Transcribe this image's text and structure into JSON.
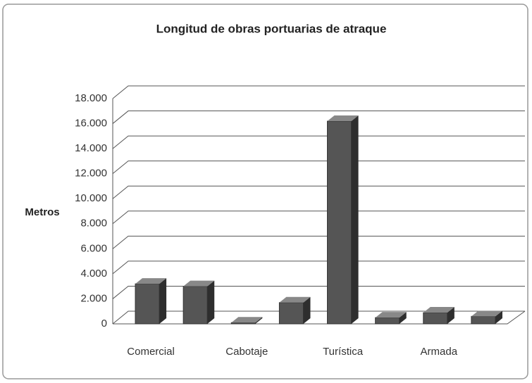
{
  "chart_data": {
    "type": "bar3d",
    "title": "Longitud de obras portuarias de atraque",
    "y_label": "Metros",
    "categories": [
      "Comercial",
      null,
      "Cabotaje",
      null,
      "Turística",
      null,
      "Armada",
      null
    ],
    "values": [
      3200,
      3000,
      100,
      1700,
      16200,
      500,
      900,
      600
    ],
    "color": "#555555",
    "ylim": [
      0,
      18000
    ],
    "yticks": [
      0,
      {
        "value": 2000,
        "label": "2.000"
      },
      {
        "value": 4000,
        "label": "4.000"
      },
      {
        "value": 6000,
        "label": "6.000"
      },
      {
        "value": 8000,
        "label": "8.000"
      },
      {
        "value": 10000,
        "label": "10.000"
      },
      {
        "value": 12000,
        "label": "12.000"
      },
      {
        "value": 14000,
        "label": "14.000"
      },
      {
        "value": 16000,
        "label": "16.000"
      },
      {
        "value": 18000,
        "label": "18.000"
      }
    ],
    "grid": true
  }
}
